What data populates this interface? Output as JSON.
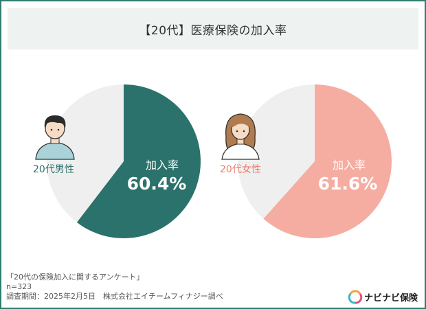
{
  "title": "【20代】医療保険の加入率",
  "chart_data": [
    {
      "type": "pie",
      "title": "20代男性",
      "label": "加入率",
      "values": [
        60.4,
        39.6
      ],
      "value_text": "60.4%",
      "colors": [
        "#2a726b",
        "#efefef"
      ]
    },
    {
      "type": "pie",
      "title": "20代女性",
      "label": "加入率",
      "values": [
        61.6,
        38.4
      ],
      "value_text": "61.6%",
      "colors": [
        "#f5ada2",
        "#efefef"
      ]
    }
  ],
  "source": {
    "line1": "「20代の保険加入に関するアンケート」",
    "line2": "n=323",
    "line3": "調査期間：2025年2月5日　株式会社エイチームフィナジー調べ"
  },
  "brand": {
    "name": "ナビナビ保険"
  }
}
